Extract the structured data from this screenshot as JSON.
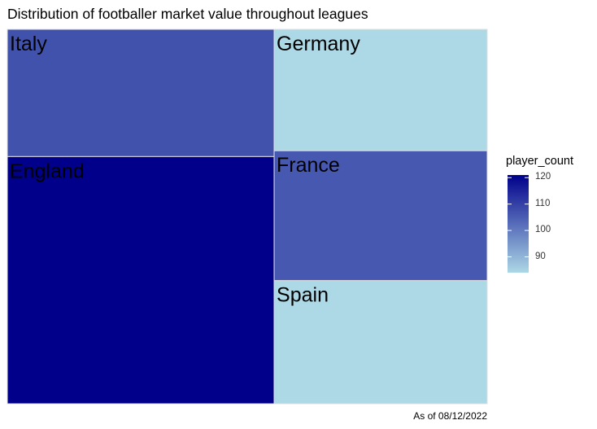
{
  "chart_data": {
    "type": "treemap",
    "title": "Distribution of footballer market value throughout leagues",
    "caption": "As of 08/12/2022",
    "fill_variable": "player_count",
    "tiles": [
      {
        "name": "England",
        "value": 0.367,
        "player_count": 121
      },
      {
        "name": "Italy",
        "value": 0.189,
        "player_count": 107
      },
      {
        "name": "Germany",
        "value": 0.144,
        "player_count": 84
      },
      {
        "name": "France",
        "value": 0.154,
        "player_count": 106
      },
      {
        "name": "Spain",
        "value": 0.146,
        "player_count": 84
      }
    ],
    "legend": {
      "title": "player_count",
      "range": [
        84,
        121
      ],
      "ticks": [
        90,
        100,
        110,
        120
      ],
      "low_color": "#add8e6",
      "high_color": "#00008b",
      "placement": "right"
    }
  }
}
